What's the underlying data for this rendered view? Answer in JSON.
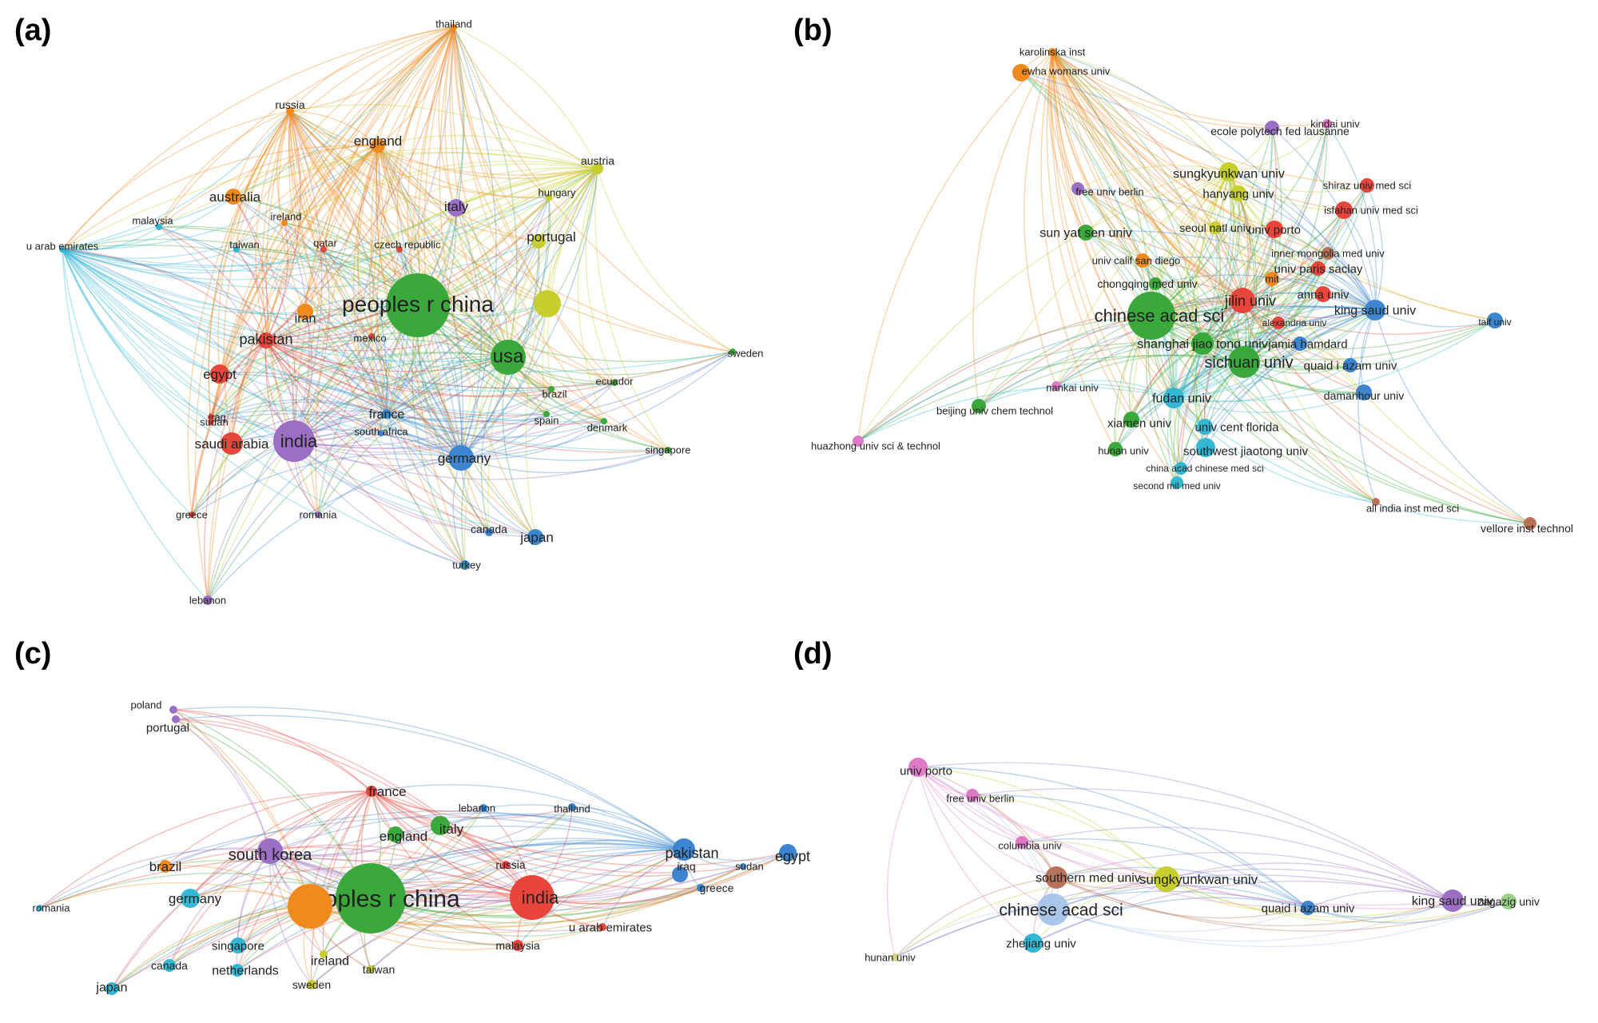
{
  "panels": [
    {
      "tag": "(a)",
      "nodes": [
        {
          "label": "thailand",
          "cluster": "orange"
        },
        {
          "label": "russia",
          "cluster": "orange"
        },
        {
          "label": "england",
          "cluster": "orange"
        },
        {
          "label": "austria",
          "cluster": "yellow"
        },
        {
          "label": "australia",
          "cluster": "orange"
        },
        {
          "label": "hungary",
          "cluster": "yellow"
        },
        {
          "label": "malaysia",
          "cluster": "cyan"
        },
        {
          "label": "ireland",
          "cluster": "orange"
        },
        {
          "label": "italy",
          "cluster": "purple"
        },
        {
          "label": "u arab emirates",
          "cluster": "cyan"
        },
        {
          "label": "taiwan",
          "cluster": "cyan"
        },
        {
          "label": "qatar",
          "cluster": "red"
        },
        {
          "label": "czech republic",
          "cluster": "red"
        },
        {
          "label": "portugal",
          "cluster": "yellow"
        },
        {
          "label": "iran",
          "cluster": "orange"
        },
        {
          "label": "peoples r china",
          "cluster": "green"
        },
        {
          "label": "",
          "cluster": "yellow"
        },
        {
          "label": "pakistan",
          "cluster": "red"
        },
        {
          "label": "mexico",
          "cluster": "red"
        },
        {
          "label": "usa",
          "cluster": "green"
        },
        {
          "label": "sweden",
          "cluster": "green"
        },
        {
          "label": "egypt",
          "cluster": "red"
        },
        {
          "label": "ecuador",
          "cluster": "green"
        },
        {
          "label": "brazil",
          "cluster": "green"
        },
        {
          "label": "iraq",
          "cluster": "red"
        },
        {
          "label": "france",
          "cluster": "blue"
        },
        {
          "label": "spain",
          "cluster": "green"
        },
        {
          "label": "denmark",
          "cluster": "green"
        },
        {
          "label": "sudan",
          "cluster": "red"
        },
        {
          "label": "south africa",
          "cluster": "blue"
        },
        {
          "label": "india",
          "cluster": "purple"
        },
        {
          "label": "saudi arabia",
          "cluster": "red"
        },
        {
          "label": "germany",
          "cluster": "blue"
        },
        {
          "label": "singapore",
          "cluster": "green"
        },
        {
          "label": "greece",
          "cluster": "red"
        },
        {
          "label": "romania",
          "cluster": "purple"
        },
        {
          "label": "canada",
          "cluster": "blue"
        },
        {
          "label": "japan",
          "cluster": "blue"
        },
        {
          "label": "turkey",
          "cluster": "blue"
        },
        {
          "label": "lebanon",
          "cluster": "purple"
        }
      ]
    },
    {
      "tag": "(b)",
      "nodes": [
        {
          "label": "karolinska inst",
          "cluster": "orange"
        },
        {
          "label": "ewha womans univ",
          "cluster": "orange"
        },
        {
          "label": "kindai univ",
          "cluster": "pink"
        },
        {
          "label": "ecole polytech fed lausanne",
          "cluster": "purple"
        },
        {
          "label": "sungkyunkwan univ",
          "cluster": "yellow"
        },
        {
          "label": "shiraz univ med sci",
          "cluster": "red"
        },
        {
          "label": "hanyang univ",
          "cluster": "yellow"
        },
        {
          "label": "free univ berlin",
          "cluster": "purple"
        },
        {
          "label": "isfahan univ med sci",
          "cluster": "red"
        },
        {
          "label": "seoul natl univ",
          "cluster": "yellow"
        },
        {
          "label": "univ porto",
          "cluster": "red"
        },
        {
          "label": "sun yat sen univ",
          "cluster": "green"
        },
        {
          "label": "inner mongolia med univ",
          "cluster": "brown"
        },
        {
          "label": "univ calif san diego",
          "cluster": "orange"
        },
        {
          "label": "univ paris saclay",
          "cluster": "red"
        },
        {
          "label": "mit",
          "cluster": "orange"
        },
        {
          "label": "chongqing med univ",
          "cluster": "green"
        },
        {
          "label": "anna univ",
          "cluster": "red"
        },
        {
          "label": "jilin univ",
          "cluster": "red"
        },
        {
          "label": "chinese acad sci",
          "cluster": "green"
        },
        {
          "label": "king saud univ",
          "cluster": "blue"
        },
        {
          "label": "alexandria univ",
          "cluster": "red"
        },
        {
          "label": "taif univ",
          "cluster": "blue"
        },
        {
          "label": "shanghai jiao tong univ",
          "cluster": "green"
        },
        {
          "label": "jamia hamdard",
          "cluster": "blue"
        },
        {
          "label": "sichuan univ",
          "cluster": "green"
        },
        {
          "label": "quaid i azam univ",
          "cluster": "blue"
        },
        {
          "label": "nankai univ",
          "cluster": "pink"
        },
        {
          "label": "damanhour univ",
          "cluster": "blue"
        },
        {
          "label": "fudan univ",
          "cluster": "cyan"
        },
        {
          "label": "beijing univ chem technol",
          "cluster": "green"
        },
        {
          "label": "xiamen univ",
          "cluster": "green"
        },
        {
          "label": "univ cent florida",
          "cluster": "cyan"
        },
        {
          "label": "huazhong univ sci & technol",
          "cluster": "pink"
        },
        {
          "label": "hunan univ",
          "cluster": "green"
        },
        {
          "label": "southwest jiaotong univ",
          "cluster": "cyan"
        },
        {
          "label": "china acad chinese med sci",
          "cluster": "cyan"
        },
        {
          "label": "second mil med univ",
          "cluster": "cyan"
        },
        {
          "label": "all india inst med sci",
          "cluster": "brown"
        },
        {
          "label": "vellore inst technol",
          "cluster": "brown"
        }
      ]
    },
    {
      "tag": "(c)",
      "nodes": [
        {
          "label": "poland",
          "cluster": "purple"
        },
        {
          "label": "portugal",
          "cluster": "purple"
        },
        {
          "label": "france",
          "cluster": "red"
        },
        {
          "label": "lebanon",
          "cluster": "blue"
        },
        {
          "label": "thailand",
          "cluster": "blue"
        },
        {
          "label": "italy",
          "cluster": "green"
        },
        {
          "label": "england",
          "cluster": "green"
        },
        {
          "label": "south korea",
          "cluster": "purple"
        },
        {
          "label": "pakistan",
          "cluster": "blue"
        },
        {
          "label": "egypt",
          "cluster": "blue"
        },
        {
          "label": "brazil",
          "cluster": "orange"
        },
        {
          "label": "russia",
          "cluster": "red"
        },
        {
          "label": "iraq",
          "cluster": "blue"
        },
        {
          "label": "sudan",
          "cluster": "blue"
        },
        {
          "label": "india",
          "cluster": "red"
        },
        {
          "label": "greece",
          "cluster": "blue"
        },
        {
          "label": "germany",
          "cluster": "cyan"
        },
        {
          "label": "peoples r china",
          "cluster": "green"
        },
        {
          "label": "",
          "cluster": "orange"
        },
        {
          "label": "romania",
          "cluster": "cyan"
        },
        {
          "label": "u arab emirates",
          "cluster": "red"
        },
        {
          "label": "singapore",
          "cluster": "cyan"
        },
        {
          "label": "malaysia",
          "cluster": "red"
        },
        {
          "label": "ireland",
          "cluster": "yellow"
        },
        {
          "label": "canada",
          "cluster": "cyan"
        },
        {
          "label": "netherlands",
          "cluster": "cyan"
        },
        {
          "label": "taiwan",
          "cluster": "yellow"
        },
        {
          "label": "sweden",
          "cluster": "yellow"
        },
        {
          "label": "japan",
          "cluster": "cyan"
        }
      ]
    },
    {
      "tag": "(d)",
      "nodes": [
        {
          "label": "univ porto",
          "cluster": "pink"
        },
        {
          "label": "free univ berlin",
          "cluster": "pink"
        },
        {
          "label": "columbia univ",
          "cluster": "pink"
        },
        {
          "label": "southern med univ",
          "cluster": "brown"
        },
        {
          "label": "sungkyunkwan univ",
          "cluster": "yellow"
        },
        {
          "label": "chinese acad sci",
          "cluster": "lightblue"
        },
        {
          "label": "quaid i azam univ",
          "cluster": "blue"
        },
        {
          "label": "king saud univ",
          "cluster": "purple"
        },
        {
          "label": "zagazig univ",
          "cluster": "lightgreen"
        },
        {
          "label": "zhejiang univ",
          "cluster": "cyan"
        },
        {
          "label": "hunan univ",
          "cluster": "olive"
        }
      ]
    }
  ],
  "cluster_colors": {
    "red": "#e8453c",
    "green": "#3aa83a",
    "blue": "#3d86cf",
    "yellow": "#c6cf2e",
    "purple": "#9a6fc4",
    "cyan": "#34b7d3",
    "orange": "#f08a1c",
    "brown": "#b8735a",
    "pink": "#e07ac7",
    "lightblue": "#a9c6ea",
    "lightgreen": "#9ad18a",
    "olive": "#d8d486"
  }
}
